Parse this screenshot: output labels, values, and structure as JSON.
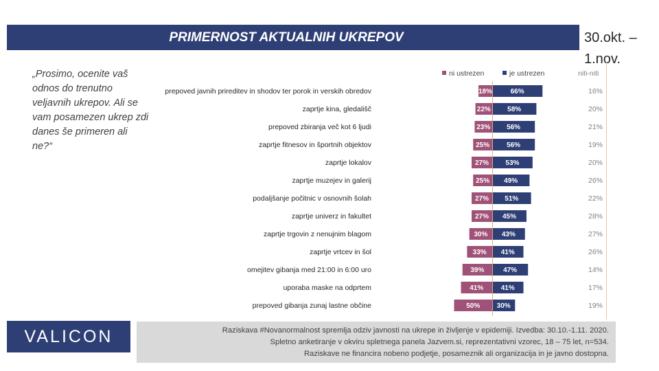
{
  "header": {
    "title": "PRIMERNOST AKTUALNIH UKREPOV",
    "date_line1": "30.okt. –",
    "date_line2": "1.nov."
  },
  "question": "„Prosimo, ocenite vaš odnos do trenutno veljavnih ukrepov.  Ali se vam posamezen ukrep zdi danes še primeren ali ne?“",
  "legend": {
    "ni_ustrezen": "ni ustrezen",
    "je_ustrezen": "je ustrezen",
    "niti_niti": "niti-niti"
  },
  "colors": {
    "title_bar": "#2e3f75",
    "ni_ustrezen": "#a05177",
    "je_ustrezen": "#2e3f75",
    "axis_line": "#e6a37c",
    "footer_bg": "#d9d9d9"
  },
  "chart_data": {
    "type": "bar",
    "orientation": "horizontal-diverging",
    "title": "PRIMERNOST AKTUALNIH UKREPOV",
    "categories": [
      "prepoved javnih prireditev in shodov ter porok in verskih obredov",
      "zaprtje kina, gledališč",
      "prepoved zbiranja več kot 6 ljudi",
      "zaprtje fitnesov in športnih objektov",
      "zaprtje lokalov",
      "zaprtje muzejev in galerij",
      "podaljšanje počitnic v osnovnih šolah",
      "zaprtje univerz in fakultet",
      "zaprtje trgovin z nenujnim blagom",
      "zaprtje vrtcev in šol",
      "omejitev gibanja med 21:00 in 6:00 uro",
      "uporaba maske na odprtem",
      "prepoved gibanja zunaj lastne občine"
    ],
    "series": [
      {
        "name": "ni ustrezen",
        "values": [
          18,
          22,
          23,
          25,
          27,
          25,
          27,
          27,
          30,
          33,
          39,
          41,
          50
        ]
      },
      {
        "name": "je ustrezen",
        "values": [
          66,
          58,
          56,
          56,
          53,
          49,
          51,
          45,
          43,
          41,
          47,
          41,
          30
        ]
      },
      {
        "name": "niti-niti",
        "values": [
          16,
          20,
          21,
          19,
          20,
          26,
          22,
          28,
          27,
          26,
          14,
          17,
          19
        ]
      }
    ],
    "value_format": "percent",
    "legend": "top-right"
  },
  "logo": {
    "text": "VALICON"
  },
  "footer": {
    "line1": "Raziskava #Novanormalnost spremlja odziv javnosti na ukrepe in življenje v epidemiji.  Izvedba: 30.10.-1.11. 2020.",
    "line2": "Spletno anketiranje v okviru spletnega panela Jazvem.si, reprezentativni vzorec, 18 – 75 let, n=534.",
    "line3": "Raziskave ne financira nobeno podjetje, posameznik ali organizacija in je javno dostopna."
  }
}
